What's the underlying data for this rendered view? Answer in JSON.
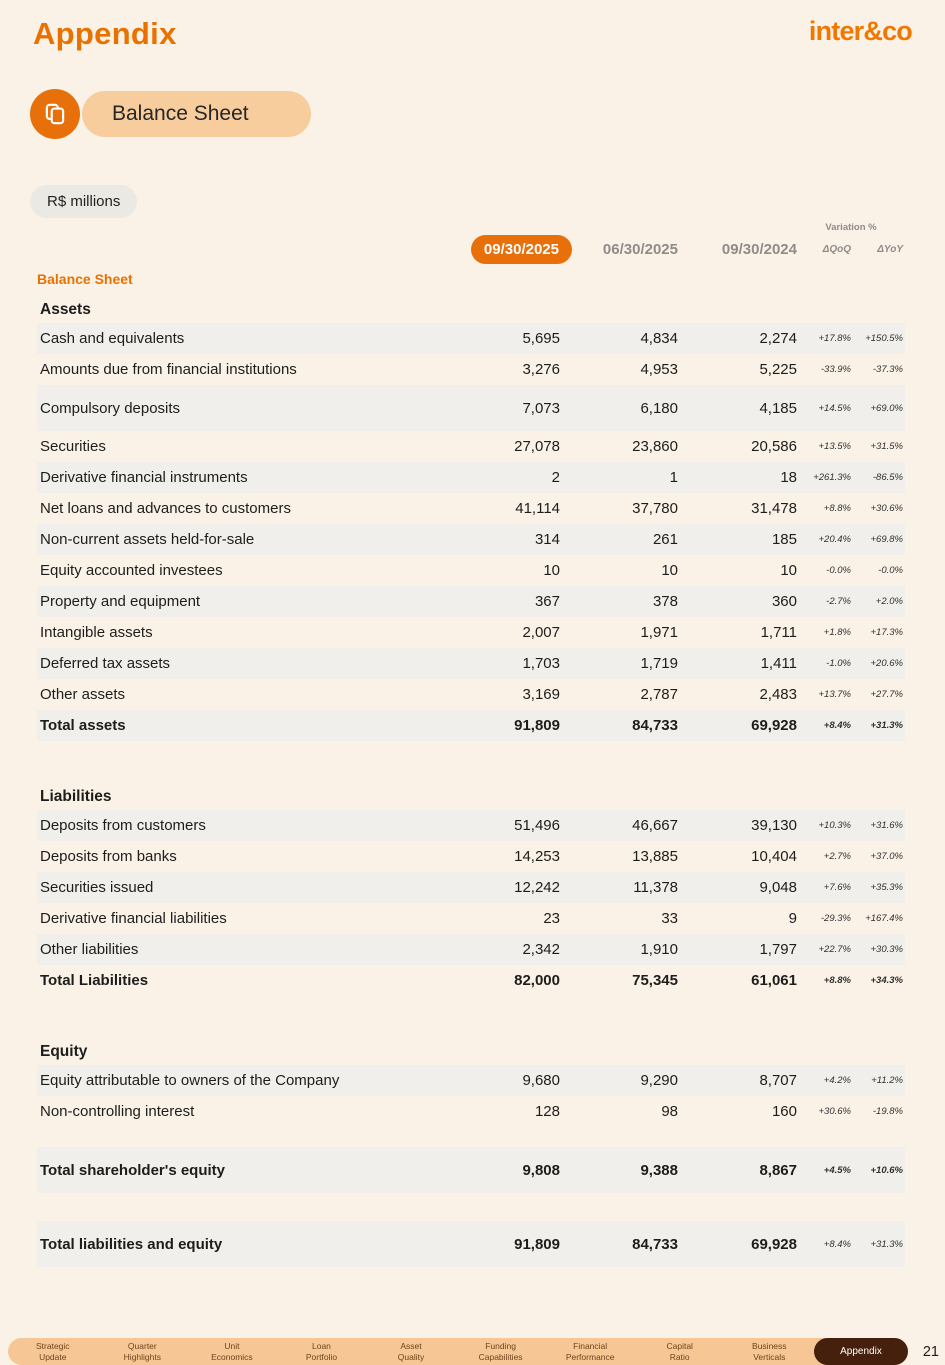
{
  "header": {
    "title": "Appendix",
    "logo": "inter&co"
  },
  "badge": {
    "label": "Balance Sheet",
    "icon": "copy-icon"
  },
  "unit_label": "R$ millions",
  "colors": {
    "accent_orange": "#E8700A",
    "title_orange": "#E97100",
    "badge_peach": "#F7CD9E",
    "footer_tan": "#F6C795",
    "active_brown": "#45200C",
    "row_shade": "#F0EFEC",
    "background_cream": "#FAF2E7",
    "muted_gray": "#8E8B88"
  },
  "table": {
    "variation_header": "Variation %",
    "col_current": "09/30/2025",
    "col_prev_q": "06/30/2025",
    "col_prev_y": "09/30/2024",
    "col_qoq": "ΔQoQ",
    "col_yoy": "ΔYoY",
    "group_label": "Balance Sheet",
    "sections": [
      {
        "heading": "Assets",
        "rows": [
          {
            "label": "Cash and equivalents",
            "v": [
              "5,695",
              "4,834",
              "2,274",
              "+17.8%",
              "+150.5%"
            ],
            "shade": true
          },
          {
            "label": "Amounts due from financial institutions",
            "v": [
              "3,276",
              "4,953",
              "5,225",
              "-33.9%",
              "-37.3%"
            ]
          },
          {
            "label": "Compulsory deposits",
            "v": [
              "7,073",
              "6,180",
              "4,185",
              "+14.5%",
              "+69.0%"
            ],
            "shade": true,
            "tall": true
          },
          {
            "label": "Securities",
            "v": [
              "27,078",
              "23,860",
              "20,586",
              "+13.5%",
              "+31.5%"
            ]
          },
          {
            "label": "Derivative financial instruments",
            "v": [
              "2",
              "1",
              "18",
              "+261.3%",
              "-86.5%"
            ],
            "shade": true
          },
          {
            "label": "Net loans and advances to customers",
            "v": [
              "41,114",
              "37,780",
              "31,478",
              "+8.8%",
              "+30.6%"
            ]
          },
          {
            "label": "Non-current assets held-for-sale",
            "v": [
              "314",
              "261",
              "185",
              "+20.4%",
              "+69.8%"
            ],
            "shade": true
          },
          {
            "label": "Equity accounted investees",
            "v": [
              "10",
              "10",
              "10",
              "-0.0%",
              "-0.0%"
            ]
          },
          {
            "label": "Property and equipment",
            "v": [
              "367",
              "378",
              "360",
              "-2.7%",
              "+2.0%"
            ],
            "shade": true
          },
          {
            "label": "Intangible assets",
            "v": [
              "2,007",
              "1,971",
              "1,711",
              "+1.8%",
              "+17.3%"
            ]
          },
          {
            "label": "Deferred tax assets",
            "v": [
              "1,703",
              "1,719",
              "1,411",
              "-1.0%",
              "+20.6%"
            ],
            "shade": true
          },
          {
            "label": "Other assets",
            "v": [
              "3,169",
              "2,787",
              "2,483",
              "+13.7%",
              "+27.7%"
            ]
          },
          {
            "label": "Total assets",
            "v": [
              "91,809",
              "84,733",
              "69,928",
              "+8.4%",
              "+31.3%"
            ],
            "shade": true,
            "bold": true,
            "var_bold": true
          }
        ]
      },
      {
        "heading": "Liabilities",
        "rows": [
          {
            "label": "Deposits from customers",
            "v": [
              "51,496",
              "46,667",
              "39,130",
              "+10.3%",
              "+31.6%"
            ],
            "shade": true
          },
          {
            "label": "Deposits from banks",
            "v": [
              "14,253",
              "13,885",
              "10,404",
              "+2.7%",
              "+37.0%"
            ]
          },
          {
            "label": "Securities issued",
            "v": [
              "12,242",
              "11,378",
              "9,048",
              "+7.6%",
              "+35.3%"
            ],
            "shade": true
          },
          {
            "label": "Derivative financial liabilities",
            "v": [
              "23",
              "33",
              "9",
              "-29.3%",
              "+167.4%"
            ]
          },
          {
            "label": "Other liabilities",
            "v": [
              "2,342",
              "1,910",
              "1,797",
              "+22.7%",
              "+30.3%"
            ],
            "shade": true
          },
          {
            "label": "Total Liabilities",
            "v": [
              "82,000",
              "75,345",
              "61,061",
              "+8.8%",
              "+34.3%"
            ],
            "bold": true,
            "var_bold": true
          }
        ]
      },
      {
        "heading": "Equity",
        "rows": [
          {
            "label": "Equity attributable to owners of the Company",
            "v": [
              "9,680",
              "9,290",
              "8,707",
              "+4.2%",
              "+11.2%"
            ],
            "shade": true
          },
          {
            "label": "Non-controlling interest",
            "v": [
              "128",
              "98",
              "160",
              "+30.6%",
              "-19.8%"
            ]
          },
          {
            "label": "Total shareholder's equity",
            "v": [
              "9,808",
              "9,388",
              "8,867",
              "+4.5%",
              "+10.6%"
            ],
            "shade": true,
            "bold": true,
            "var_bold": true,
            "gap_before": 20,
            "tall": true
          },
          {
            "label": "Total liabilities and equity",
            "v": [
              "91,809",
              "84,733",
              "69,928",
              "+8.4%",
              "+31.3%"
            ],
            "shade": true,
            "bold": true,
            "gap_before": 28,
            "tall": true
          }
        ]
      }
    ]
  },
  "footer": {
    "tabs": [
      {
        "lines": [
          "Strategic",
          "Update"
        ]
      },
      {
        "lines": [
          "Quarter",
          "Highlights"
        ]
      },
      {
        "lines": [
          "Unit",
          "Economics"
        ]
      },
      {
        "lines": [
          "Loan",
          "Portfolio"
        ]
      },
      {
        "lines": [
          "Asset",
          "Quality"
        ]
      },
      {
        "lines": [
          "Funding",
          "Capabilities"
        ]
      },
      {
        "lines": [
          "Financial",
          "Performance"
        ]
      },
      {
        "lines": [
          "Capital",
          "Ratio"
        ]
      },
      {
        "lines": [
          "Business",
          "Verticals"
        ]
      }
    ],
    "active_tab": "Appendix",
    "page_number": "21"
  }
}
